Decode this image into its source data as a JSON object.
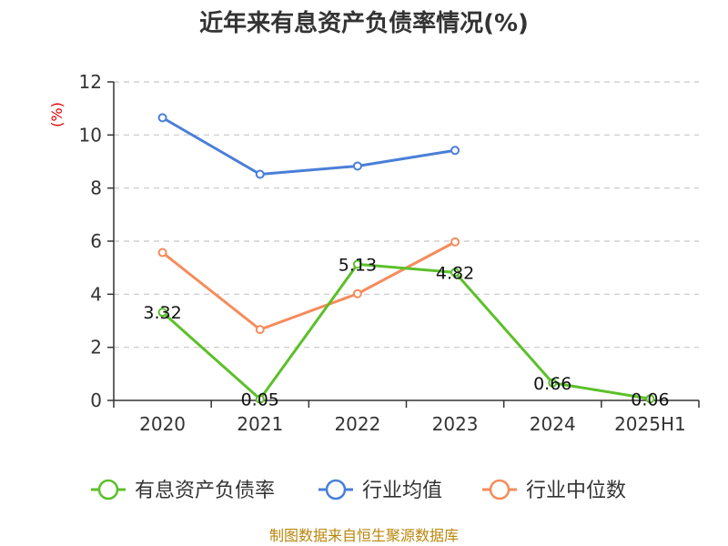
{
  "chart_data": {
    "type": "line",
    "title": "近年来有息资产负债率情况(%)",
    "ylabel": "(%)",
    "categories": [
      "2020",
      "2021",
      "2022",
      "2023",
      "2024",
      "2025H1"
    ],
    "ylim": [
      0,
      12
    ],
    "yticks": [
      0,
      2,
      4,
      6,
      8,
      10,
      12
    ],
    "grid": true,
    "legend_position": "bottom",
    "series": [
      {
        "name": "有息资产负债率",
        "color": "#5cc02a",
        "values": [
          3.32,
          0.05,
          5.13,
          4.82,
          0.66,
          0.06
        ],
        "labels": [
          "3.32",
          "0.05",
          "5.13",
          "4.82",
          "0.66",
          "0.06"
        ]
      },
      {
        "name": "行业均值",
        "color": "#4a7fd8",
        "values": [
          10.65,
          8.52,
          8.83,
          9.42,
          null,
          null
        ]
      },
      {
        "name": "行业中位数",
        "color": "#f58c5c",
        "values": [
          5.57,
          2.67,
          4.02,
          5.97,
          null,
          null
        ]
      }
    ]
  },
  "source": "制图数据来自恒生聚源数据库"
}
